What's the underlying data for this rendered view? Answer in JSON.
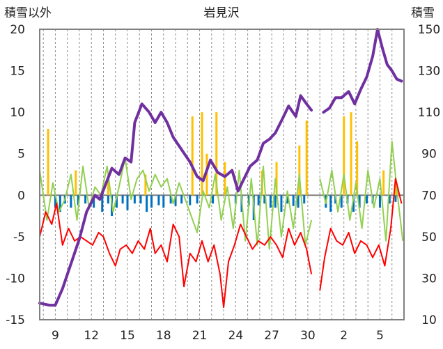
{
  "chart_data": {
    "type": "line",
    "title": "岩見沢",
    "left_axis_label": "積雪以外",
    "right_axis_label": "積雪",
    "left_ylim": [
      -15,
      20
    ],
    "left_ticks": [
      "20",
      "15",
      "10",
      "5",
      "0",
      "-5",
      "-10",
      "-15"
    ],
    "right_ylim": [
      10,
      150
    ],
    "right_ticks": [
      "150",
      "130",
      "110",
      "90",
      "70",
      "50",
      "30",
      "10"
    ],
    "x_tick_labels": [
      {
        "day": 9,
        "label": "9"
      },
      {
        "day": 12,
        "label": "12"
      },
      {
        "day": 15,
        "label": "15"
      },
      {
        "day": 18,
        "label": "18"
      },
      {
        "day": 21,
        "label": "21"
      },
      {
        "day": 24,
        "label": "24"
      },
      {
        "day": 27,
        "label": "27"
      },
      {
        "day": 30,
        "label": "30"
      },
      {
        "day": 33,
        "label": "2"
      },
      {
        "day": 36,
        "label": "5"
      }
    ],
    "x_range_days": [
      7.7,
      38
    ],
    "grid": "dashed vertical lines at each day",
    "colors": {
      "snow_depth": "#7030a0",
      "temperature": "#ff0000",
      "other_series": "#92d050",
      "precipitation": "#ffc000",
      "negative_bars": "#0070c0",
      "zero_line": "#808080"
    },
    "snow_depth": [
      [
        7.7,
        18
      ],
      [
        8.5,
        17
      ],
      [
        9.0,
        17
      ],
      [
        9.6,
        25
      ],
      [
        10.3,
        37
      ],
      [
        11.0,
        49
      ],
      [
        11.6,
        62
      ],
      [
        12.3,
        70
      ],
      [
        12.7,
        68
      ],
      [
        13.3,
        77
      ],
      [
        13.7,
        83
      ],
      [
        14.3,
        80
      ],
      [
        14.8,
        88
      ],
      [
        15.3,
        86
      ],
      [
        15.6,
        105
      ],
      [
        16.2,
        114
      ],
      [
        16.8,
        110
      ],
      [
        17.3,
        105
      ],
      [
        17.8,
        110
      ],
      [
        18.3,
        105
      ],
      [
        18.8,
        98
      ],
      [
        19.5,
        92
      ],
      [
        20.2,
        86
      ],
      [
        20.8,
        79
      ],
      [
        21.3,
        77
      ],
      [
        21.9,
        87
      ],
      [
        22.5,
        81
      ],
      [
        23.1,
        79
      ],
      [
        23.7,
        82
      ],
      [
        24.2,
        72
      ],
      [
        24.7,
        78
      ],
      [
        25.2,
        84
      ],
      [
        25.8,
        87
      ],
      [
        26.3,
        95
      ],
      [
        26.8,
        97
      ],
      [
        27.3,
        100
      ],
      [
        27.9,
        107
      ],
      [
        28.4,
        113
      ],
      [
        29.0,
        108
      ],
      [
        29.4,
        118
      ],
      [
        29.9,
        114
      ],
      [
        30.3,
        111
      ],
      null,
      [
        31.3,
        110
      ],
      [
        31.8,
        112
      ],
      [
        32.3,
        117
      ],
      [
        32.8,
        117
      ],
      [
        33.4,
        120
      ],
      [
        33.9,
        114
      ],
      [
        34.4,
        121
      ],
      [
        34.9,
        127
      ],
      [
        35.4,
        137
      ],
      [
        35.8,
        150
      ],
      [
        36.2,
        141
      ],
      [
        36.6,
        133
      ],
      [
        37.0,
        130
      ],
      [
        37.4,
        126
      ],
      [
        37.8,
        125
      ]
    ],
    "temperature": [
      [
        7.7,
        -5.0
      ],
      [
        8.2,
        -2.0
      ],
      [
        8.7,
        -3.5
      ],
      [
        9.1,
        -1.0
      ],
      [
        9.6,
        -6.0
      ],
      [
        10.1,
        -4.0
      ],
      [
        10.6,
        -5.5
      ],
      [
        11.1,
        -5.0
      ],
      [
        11.6,
        -5.5
      ],
      [
        12.1,
        -6.0
      ],
      [
        12.6,
        -4.5
      ],
      [
        13.0,
        -5.0
      ],
      [
        13.5,
        -7.0
      ],
      [
        14.0,
        -8.5
      ],
      [
        14.4,
        -6.5
      ],
      [
        14.9,
        -6.0
      ],
      [
        15.4,
        -7.0
      ],
      [
        15.9,
        -5.5
      ],
      [
        16.4,
        -6.5
      ],
      [
        16.9,
        -4.0
      ],
      [
        17.3,
        -7.0
      ],
      [
        17.8,
        -6.0
      ],
      [
        18.3,
        -8.0
      ],
      [
        18.8,
        -3.5
      ],
      [
        19.3,
        -5.0
      ],
      [
        19.7,
        -11.0
      ],
      [
        20.2,
        -7.0
      ],
      [
        20.7,
        -8.0
      ],
      [
        21.2,
        -5.5
      ],
      [
        21.7,
        -8.0
      ],
      [
        22.2,
        -6.0
      ],
      [
        22.7,
        -9.5
      ],
      [
        23.0,
        -13.5
      ],
      [
        23.4,
        -8.0
      ],
      [
        23.9,
        -6.0
      ],
      [
        24.4,
        -3.5
      ],
      [
        24.9,
        -5.0
      ],
      [
        25.4,
        -6.5
      ],
      [
        25.9,
        -5.5
      ],
      [
        26.4,
        -6.0
      ],
      [
        26.9,
        -5.0
      ],
      [
        27.4,
        -6.0
      ],
      [
        27.9,
        -7.5
      ],
      [
        28.4,
        -4.0
      ],
      [
        28.9,
        -6.0
      ],
      [
        29.4,
        -4.5
      ],
      [
        29.9,
        -6.5
      ],
      [
        30.3,
        -9.5
      ],
      null,
      [
        31.0,
        -11.5
      ],
      [
        31.4,
        -7.5
      ],
      [
        31.9,
        -4.0
      ],
      [
        32.4,
        -5.5
      ],
      [
        32.9,
        -6.0
      ],
      [
        33.4,
        -4.5
      ],
      [
        33.9,
        -7.0
      ],
      [
        34.4,
        -5.5
      ],
      [
        34.9,
        -6.0
      ],
      [
        35.4,
        -7.5
      ],
      [
        35.9,
        -6.0
      ],
      [
        36.4,
        -8.5
      ],
      [
        36.9,
        -4.0
      ],
      [
        37.3,
        2.0
      ],
      [
        37.8,
        -1.0
      ]
    ],
    "other_series": [
      [
        7.7,
        3.0
      ],
      [
        8.3,
        -3.0
      ],
      [
        8.8,
        1.5
      ],
      [
        9.3,
        -2.0
      ],
      [
        9.8,
        -0.5
      ],
      [
        10.3,
        2.5
      ],
      [
        10.8,
        -3.0
      ],
      [
        11.3,
        3.5
      ],
      [
        11.8,
        -1.5
      ],
      [
        12.3,
        1.0
      ],
      [
        12.8,
        0.0
      ],
      [
        13.3,
        3.5
      ],
      [
        13.8,
        -2.0
      ],
      [
        14.3,
        1.0
      ],
      [
        14.8,
        4.5
      ],
      [
        15.3,
        -0.5
      ],
      [
        15.8,
        2.0
      ],
      [
        16.3,
        3.0
      ],
      [
        16.8,
        0.5
      ],
      [
        17.3,
        2.5
      ],
      [
        17.8,
        1.0
      ],
      [
        18.3,
        2.0
      ],
      [
        18.8,
        -1.0
      ],
      [
        19.3,
        1.5
      ],
      [
        19.8,
        -0.5
      ],
      [
        20.3,
        -2.5
      ],
      [
        20.8,
        -4.5
      ],
      [
        21.3,
        0.5
      ],
      [
        21.8,
        -1.5
      ],
      [
        22.3,
        2.5
      ],
      [
        22.8,
        -3.0
      ],
      [
        23.3,
        1.0
      ],
      [
        23.8,
        -4.0
      ],
      [
        24.3,
        3.0
      ],
      [
        24.8,
        -5.5
      ],
      [
        25.3,
        2.0
      ],
      [
        25.8,
        -6.0
      ],
      [
        26.3,
        3.5
      ],
      [
        26.8,
        -6.5
      ],
      [
        27.3,
        2.0
      ],
      [
        27.8,
        -5.0
      ],
      [
        28.3,
        0.5
      ],
      [
        28.8,
        -4.0
      ],
      [
        29.3,
        2.5
      ],
      [
        29.8,
        -6.0
      ],
      [
        30.3,
        -3.0
      ],
      null,
      [
        31.0,
        2.0
      ],
      [
        31.5,
        -1.0
      ],
      [
        32.0,
        3.0
      ],
      [
        32.5,
        -2.0
      ],
      [
        33.0,
        2.5
      ],
      [
        33.5,
        -3.0
      ],
      [
        34.0,
        1.5
      ],
      [
        34.5,
        -4.0
      ],
      [
        35.0,
        3.0
      ],
      [
        35.5,
        -1.5
      ],
      [
        36.0,
        2.0
      ],
      [
        36.5,
        -5.5
      ],
      [
        37.0,
        6.5
      ],
      [
        37.5,
        -0.5
      ],
      [
        37.9,
        -5.5
      ]
    ],
    "precipitation_bars": [
      [
        8.4,
        8.0
      ],
      [
        10.7,
        3.0
      ],
      [
        13.4,
        2.0
      ],
      [
        16.5,
        2.5
      ],
      [
        20.4,
        9.5
      ],
      [
        21.2,
        10.0
      ],
      [
        21.6,
        5.0
      ],
      [
        22.4,
        10.0
      ],
      [
        23.1,
        4.0
      ],
      [
        26.2,
        3.0
      ],
      [
        27.4,
        4.0
      ],
      [
        29.3,
        6.0
      ],
      [
        29.9,
        9.0
      ],
      [
        33.0,
        9.5
      ],
      [
        33.6,
        10.0
      ],
      [
        34.1,
        6.5
      ],
      [
        36.3,
        3.0
      ],
      [
        37.3,
        2.0
      ]
    ],
    "negative_bars": [
      [
        9.0,
        -1.5
      ],
      [
        9.4,
        -2.0
      ],
      [
        9.8,
        -1.0
      ],
      [
        10.3,
        -1.5
      ],
      [
        10.9,
        -1.2
      ],
      [
        11.5,
        -1.0
      ],
      [
        12.2,
        -1.5
      ],
      [
        12.9,
        -2.0
      ],
      [
        13.4,
        -1.0
      ],
      [
        13.7,
        -2.5
      ],
      [
        14.1,
        -1.5
      ],
      [
        14.6,
        -1.0
      ],
      [
        15.0,
        -1.8
      ],
      [
        15.6,
        -1.0
      ],
      [
        16.1,
        -1.0
      ],
      [
        16.6,
        -2.0
      ],
      [
        17.0,
        -1.5
      ],
      [
        17.6,
        -1.2
      ],
      [
        18.0,
        -1.5
      ],
      [
        18.6,
        -1.0
      ],
      [
        19.0,
        -1.3
      ],
      [
        19.5,
        -1.0
      ],
      [
        20.2,
        -1.2
      ],
      [
        20.8,
        -1.0
      ],
      [
        22.1,
        -1.0
      ],
      [
        24.0,
        -1.0
      ],
      [
        24.5,
        -2.0
      ],
      [
        25.1,
        -1.2
      ],
      [
        25.5,
        -3.0
      ],
      [
        25.9,
        -1.2
      ],
      [
        26.4,
        -1.0
      ],
      [
        26.9,
        -1.5
      ],
      [
        27.3,
        -1.5
      ],
      [
        27.8,
        -2.0
      ],
      [
        28.3,
        -1.0
      ],
      [
        28.8,
        -1.3
      ],
      [
        29.2,
        -1.5
      ],
      [
        29.7,
        -1.0
      ],
      [
        31.5,
        -1.5
      ],
      [
        31.9,
        -2.0
      ],
      [
        32.3,
        -1.0
      ],
      [
        32.8,
        -1.5
      ],
      [
        33.3,
        -1.0
      ],
      [
        33.8,
        -2.0
      ],
      [
        34.3,
        -1.5
      ],
      [
        34.9,
        -1.0
      ],
      [
        35.4,
        -1.0
      ],
      [
        36.0,
        -1.5
      ],
      [
        36.8,
        -1.0
      ],
      [
        37.3,
        -0.8
      ]
    ]
  }
}
